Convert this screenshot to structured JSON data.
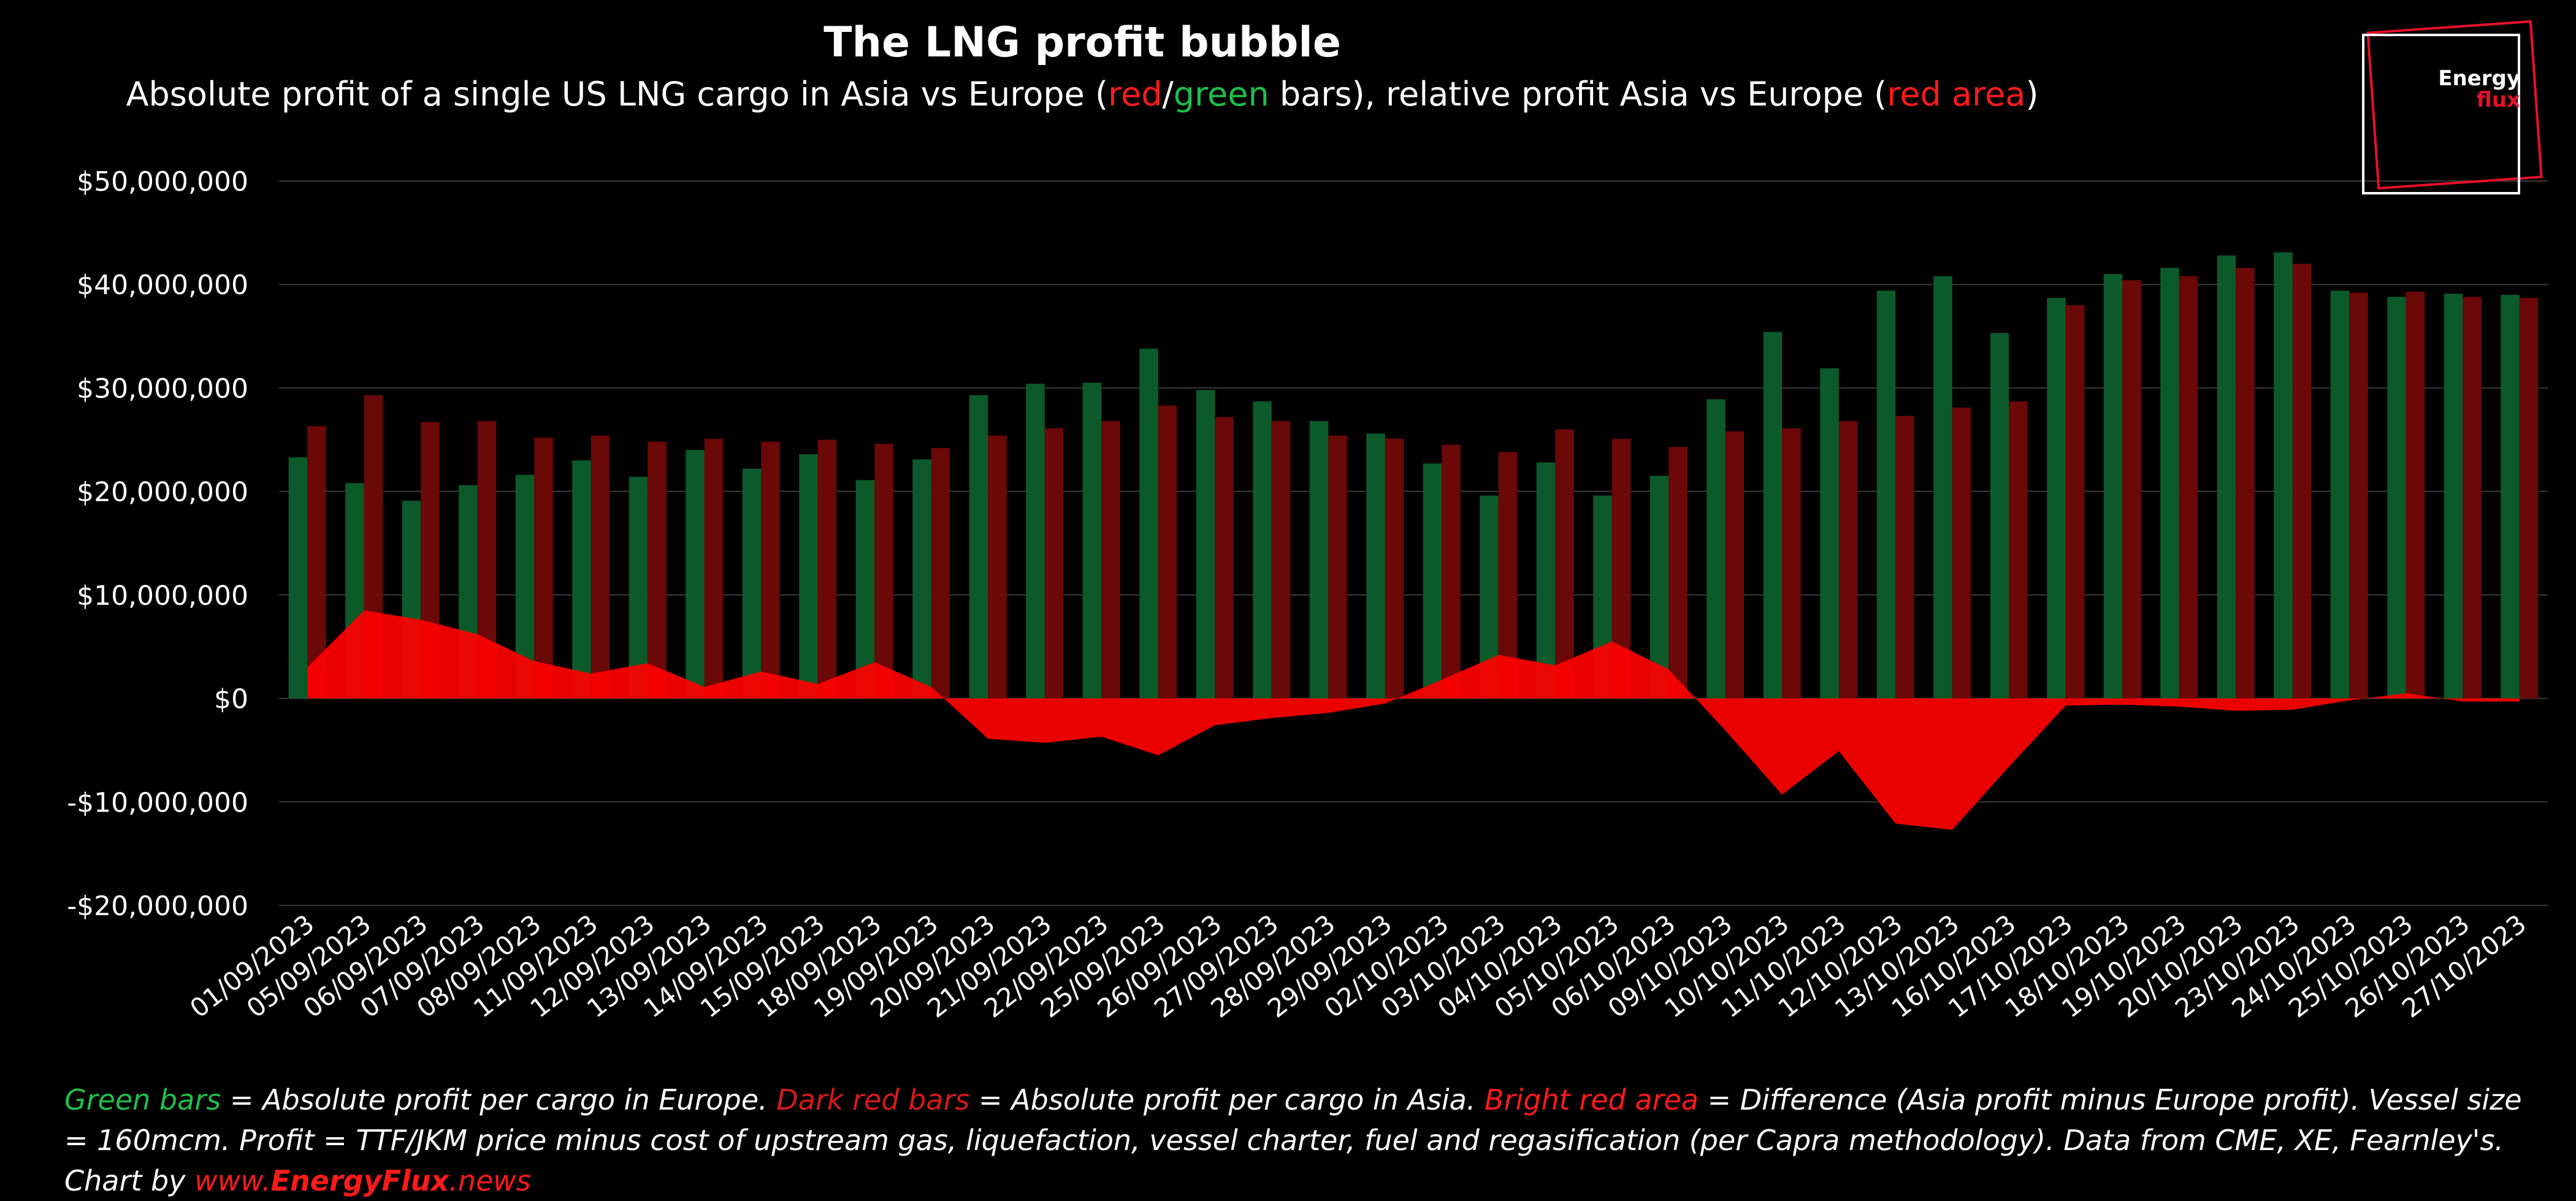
{
  "title": "The LNG profit bubble",
  "subtitle": {
    "prefix": "Absolute profit of a single US LNG cargo in Asia vs Europe (",
    "red": "red",
    "slash": "/",
    "green": "green",
    "mid": " bars), relative profit Asia vs Europe (",
    "red_area": "red area",
    "suffix": ")"
  },
  "logo": {
    "line1": "Energy",
    "line2": "flux"
  },
  "footnote": {
    "green_bars": "Green bars",
    "t1": " = Absolute profit per cargo in Europe. ",
    "dark_red_bars": "Dark red bars",
    "t2": " = Absolute profit per cargo in Asia. ",
    "bright_red_area": "Bright red area",
    "t3": " = Difference (Asia profit minus Europe profit). Vessel size = 160mcm. Profit = TTF/JKM price minus cost of upstream gas, liquefaction, vessel charter, fuel and regasification (per Capra methodology). Data from CME, XE, Fearnley's. Chart by ",
    "link_www": "www.",
    "link_brand": "EnergyFlux",
    "link_tld": ".news"
  },
  "colors": {
    "europe_bar": "#0c5a2a",
    "asia_bar": "#6b0808",
    "difference_area": "#ff0000",
    "gridline": "#3a3a3a",
    "background": "#000000"
  },
  "chart_data": {
    "type": "bar",
    "categories": [
      "01/09/2023",
      "05/09/2023",
      "06/09/2023",
      "07/09/2023",
      "08/09/2023",
      "11/09/2023",
      "12/09/2023",
      "13/09/2023",
      "14/09/2023",
      "15/09/2023",
      "18/09/2023",
      "19/09/2023",
      "20/09/2023",
      "21/09/2023",
      "22/09/2023",
      "25/09/2023",
      "26/09/2023",
      "27/09/2023",
      "28/09/2023",
      "29/09/2023",
      "02/10/2023",
      "03/10/2023",
      "04/10/2023",
      "05/10/2023",
      "06/10/2023",
      "09/10/2023",
      "10/10/2023",
      "11/10/2023",
      "12/10/2023",
      "13/10/2023",
      "16/10/2023",
      "17/10/2023",
      "18/10/2023",
      "19/10/2023",
      "20/10/2023",
      "23/10/2023",
      "24/10/2023",
      "25/10/2023",
      "26/10/2023",
      "27/10/2023"
    ],
    "series": [
      {
        "name": "Europe",
        "type": "bar",
        "values": [
          23300000,
          20800000,
          19100000,
          20600000,
          21600000,
          23000000,
          21400000,
          24000000,
          22200000,
          23600000,
          21100000,
          23100000,
          29300000,
          30400000,
          30500000,
          33800000,
          29800000,
          28700000,
          26800000,
          25600000,
          22700000,
          19600000,
          22800000,
          19600000,
          21500000,
          28900000,
          35400000,
          31900000,
          39400000,
          40800000,
          35300000,
          38700000,
          41000000,
          41600000,
          42800000,
          43100000,
          39400000,
          38800000,
          39100000,
          39000000
        ]
      },
      {
        "name": "Asia",
        "type": "bar",
        "values": [
          26300000,
          29300000,
          26700000,
          26800000,
          25200000,
          25400000,
          24800000,
          25100000,
          24800000,
          25000000,
          24600000,
          24200000,
          25400000,
          26100000,
          26800000,
          28300000,
          27200000,
          26800000,
          25400000,
          25100000,
          24500000,
          23800000,
          26000000,
          25100000,
          24300000,
          25800000,
          26100000,
          26800000,
          27300000,
          28100000,
          28700000,
          38000000,
          40400000,
          40800000,
          41600000,
          42000000,
          39200000,
          39300000,
          38800000,
          38700000
        ]
      },
      {
        "name": "Difference",
        "type": "area",
        "values": [
          3000000,
          8500000,
          7600000,
          6200000,
          3600000,
          2400000,
          3400000,
          1100000,
          2600000,
          1400000,
          3500000,
          1100000,
          -3900000,
          -4300000,
          -3700000,
          -5500000,
          -2600000,
          -1900000,
          -1400000,
          -500000,
          1800000,
          4200000,
          3200000,
          5500000,
          2800000,
          -3100000,
          -9300000,
          -5100000,
          -12100000,
          -12700000,
          -6600000,
          -700000,
          -600000,
          -800000,
          -1200000,
          -1100000,
          -200000,
          500000,
          -300000,
          -300000
        ]
      }
    ],
    "ylim": [
      -20000000,
      50000000
    ],
    "yticks": [
      -20000000,
      -10000000,
      0,
      10000000,
      20000000,
      30000000,
      40000000,
      50000000
    ],
    "ytick_labels": [
      "-$20,000,000",
      "-$10,000,000",
      "$0",
      "$10,000,000",
      "$20,000,000",
      "$30,000,000",
      "$40,000,000",
      "$50,000,000"
    ],
    "grid": true,
    "legend": "none"
  }
}
